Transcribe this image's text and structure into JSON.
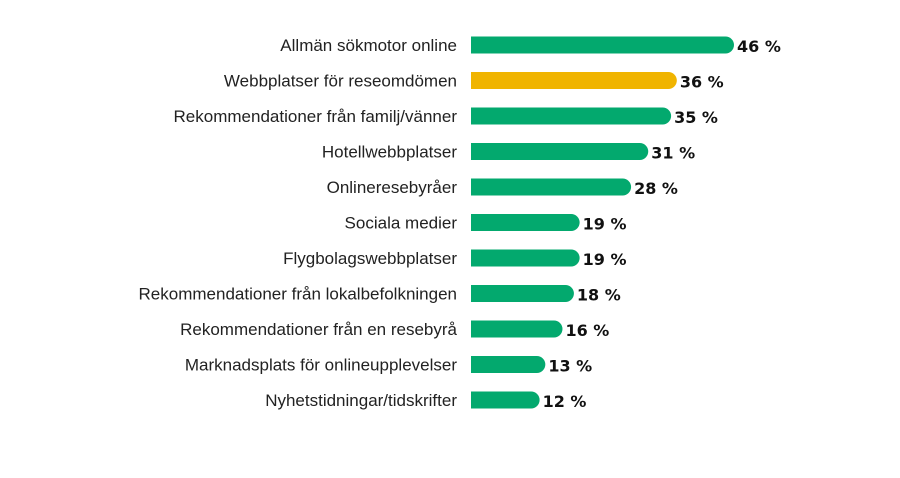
{
  "chart_data": {
    "type": "bar",
    "orientation": "horizontal",
    "title": "",
    "xlabel": "",
    "ylabel": "",
    "xlim": [
      0,
      46
    ],
    "grid": false,
    "legend": "none",
    "value_suffix": " %",
    "categories": [
      "Allmän sökmotor online",
      "Webbplatser för reseomdömen",
      "Rekommendationer från familj/vänner",
      "Hotellwebbplatser",
      "Onlineresebyråer",
      "Sociala medier",
      "Flygbolagswebbplatser",
      "Rekommendationer från lokalbefolkningen",
      "Rekommendationer från en resebyrå",
      "Marknadsplats för onlineupplevelser",
      "Nyhetstidningar/tidskrifter"
    ],
    "values": [
      46,
      36,
      35,
      31,
      28,
      19,
      19,
      18,
      16,
      13,
      12
    ],
    "value_labels": [
      "46 %",
      "36 %",
      "35 %",
      "31 %",
      "28 %",
      "19 %",
      "19 %",
      "18 %",
      "16 %",
      "13 %",
      "12 %"
    ],
    "colors": {
      "default": "#03a96e",
      "highlight": "#f0b400"
    },
    "highlight_index": 1
  }
}
